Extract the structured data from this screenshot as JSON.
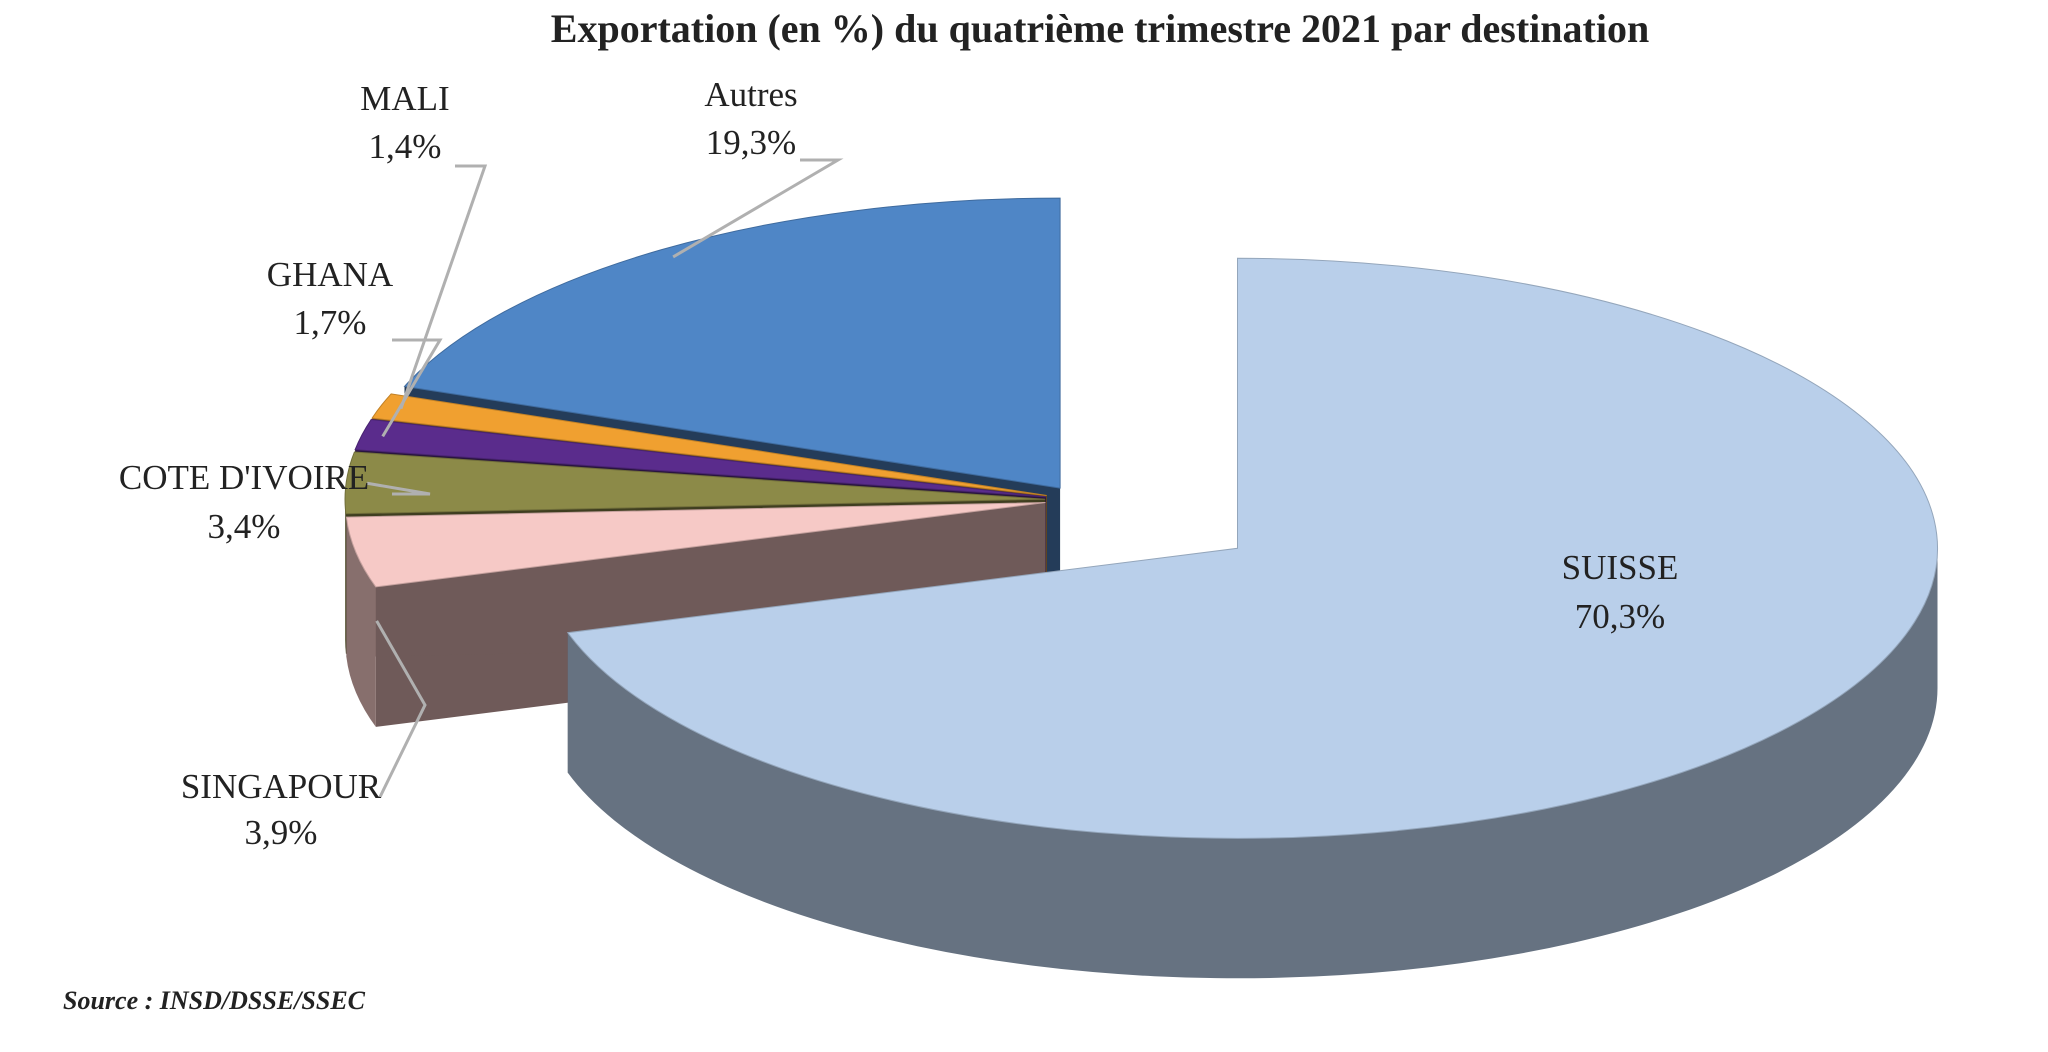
{
  "chart_data": {
    "type": "pie",
    "title": "Exportation (en %) du quatrième trimestre 2021 par destination",
    "categories": [
      "SUISSE",
      "SINGAPOUR",
      "COTE D'IVOIRE",
      "GHANA",
      "MALI",
      "Autres"
    ],
    "values": [
      70.3,
      3.9,
      3.4,
      1.7,
      1.4,
      19.3
    ],
    "value_labels": [
      "70,3%",
      "3,9%",
      "3,4%",
      "1,7%",
      "1,4%",
      "19,3%"
    ],
    "colors": [
      "#b9cfea",
      "#f6c9c6",
      "#8c8a48",
      "#5a2c8c",
      "#f0a030",
      "#4f86c6"
    ],
    "source": "Source : INSD/DSSE/SSEC"
  }
}
